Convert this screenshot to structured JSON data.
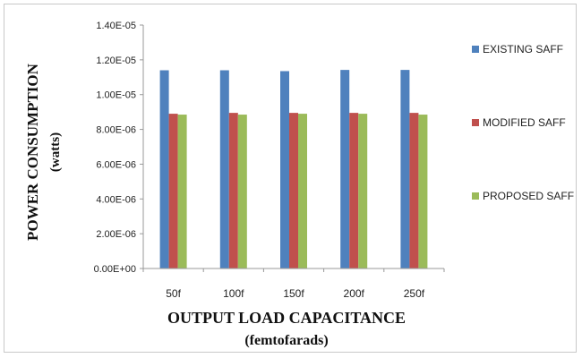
{
  "chart_data": {
    "type": "bar",
    "categories": [
      "50f",
      "100f",
      "150f",
      "200f",
      "250f"
    ],
    "series": [
      {
        "name": "EXISTING SAFF",
        "color": "#4f81bd",
        "values": [
          1.14e-05,
          1.14e-05,
          1.135e-05,
          1.142e-05,
          1.142e-05
        ]
      },
      {
        "name": "MODIFIED SAFF",
        "color": "#c0504d",
        "values": [
          8.9e-06,
          8.95e-06,
          8.95e-06,
          8.95e-06,
          8.95e-06
        ]
      },
      {
        "name": "PROPOSED SAFF",
        "color": "#9bbb59",
        "values": [
          8.85e-06,
          8.85e-06,
          8.9e-06,
          8.9e-06,
          8.85e-06
        ]
      }
    ],
    "ylim": [
      0,
      1.4e-05
    ],
    "yticks": [
      0,
      2e-06,
      4e-06,
      6e-06,
      8e-06,
      1e-05,
      1.2e-05,
      1.4e-05
    ],
    "ytick_labels": [
      "0.00E+00",
      "2.00E-06",
      "4.00E-06",
      "6.00E-06",
      "8.00E-06",
      "1.00E-05",
      "1.20E-05",
      "1.40E-05"
    ],
    "ylabel": "POWER CONSUMPTION",
    "ylabel_unit": "(watts)",
    "xlabel": "OUTPUT LOAD CAPACITANCE",
    "xlabel_unit": "(femtofarads)",
    "grid": false,
    "legend_position": "right"
  }
}
